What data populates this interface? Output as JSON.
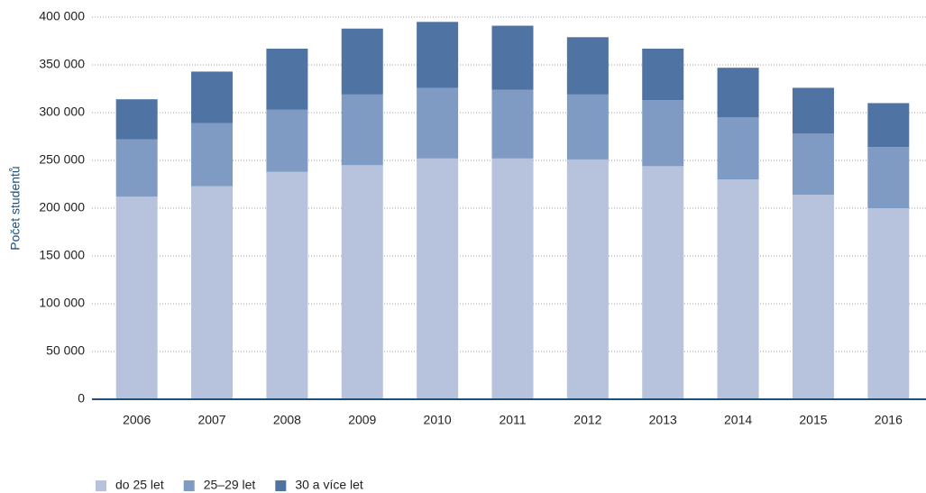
{
  "chart_data": {
    "type": "stacked_bar",
    "y_label": "Počet studentů",
    "categories": [
      "2006",
      "2007",
      "2008",
      "2009",
      "2010",
      "2011",
      "2012",
      "2013",
      "2014",
      "2015",
      "2016"
    ],
    "series": [
      {
        "name": "do 25 let",
        "color": "#b7c2dd",
        "values": [
          212000,
          223000,
          238000,
          245000,
          252000,
          252000,
          251000,
          244000,
          230000,
          214000,
          200000
        ]
      },
      {
        "name": "25–29 let",
        "color": "#7f9bc4",
        "values": [
          60000,
          66000,
          65000,
          74000,
          74000,
          72000,
          68000,
          69000,
          65000,
          64000,
          64000
        ]
      },
      {
        "name": "30 a více let",
        "color": "#4f73a3",
        "values": [
          42000,
          54000,
          64000,
          69000,
          69000,
          67000,
          60000,
          54000,
          52000,
          48000,
          46000
        ]
      }
    ],
    "ylim": [
      0,
      400000
    ],
    "yticks": [
      0,
      {
        "value": 50000,
        "label": "50 000"
      },
      {
        "value": 100000,
        "label": "100 000"
      },
      {
        "value": 150000,
        "label": "150 000"
      },
      {
        "value": 200000,
        "label": "200 000"
      },
      {
        "value": 250000,
        "label": "250 000"
      },
      {
        "value": 300000,
        "label": "300 000"
      },
      {
        "value": 350000,
        "label": "350 000"
      },
      {
        "value": 400000,
        "label": "400 000"
      }
    ],
    "grid": true,
    "legend": "bottom-left"
  }
}
